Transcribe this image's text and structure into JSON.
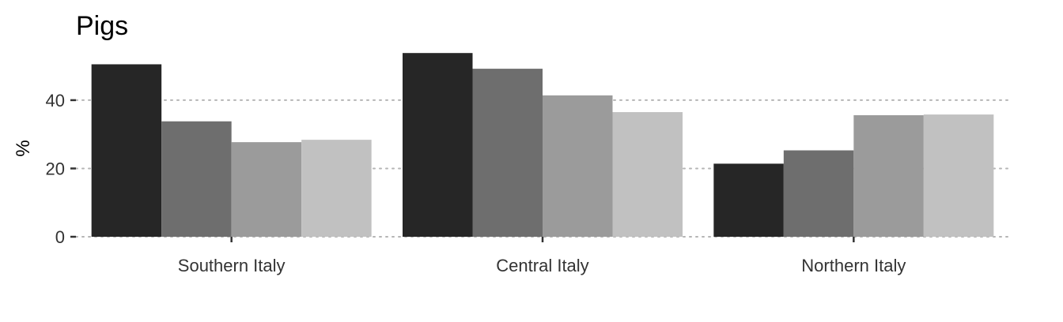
{
  "chart_data": {
    "type": "bar",
    "title": "Pigs",
    "xlabel": "",
    "ylabel": "%",
    "categories": [
      "Southern Italy",
      "Central Italy",
      "Northern Italy"
    ],
    "yticks": [
      0,
      20,
      40
    ],
    "ylim": [
      0,
      55
    ],
    "grid": true,
    "legend": "none",
    "series": [
      {
        "values": [
          50.5,
          53.8,
          21.4
        ],
        "color": "#262626"
      },
      {
        "values": [
          33.8,
          49.2,
          25.3
        ],
        "color": "#6e6e6e"
      },
      {
        "values": [
          27.7,
          41.4,
          35.6
        ],
        "color": "#9b9b9b"
      },
      {
        "values": [
          28.4,
          36.5,
          35.8
        ],
        "color": "#c1c1c1"
      }
    ]
  }
}
